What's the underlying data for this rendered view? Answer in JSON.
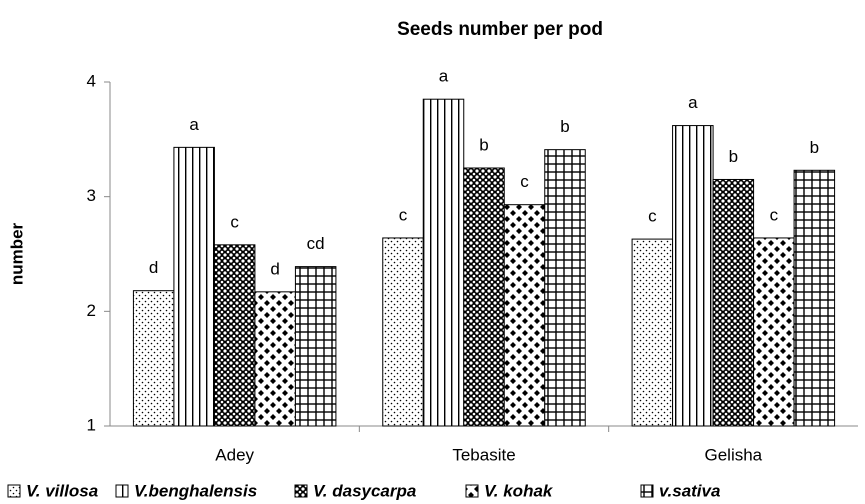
{
  "chart_data": {
    "type": "bar",
    "title": "Seeds number per pod",
    "y_label": "number",
    "categories": [
      "Adey",
      "Tebasite",
      "Gelisha"
    ],
    "series": [
      {
        "name": "V. villosa",
        "color": "#000000",
        "values": [
          2.18,
          2.64,
          2.63
        ],
        "value_labels": [
          "d",
          "c",
          "c"
        ]
      },
      {
        "name": "V.benghalensis",
        "color": "#000000",
        "values": [
          3.43,
          3.85,
          3.62
        ],
        "value_labels": [
          "a",
          "a",
          "a"
        ]
      },
      {
        "name": "V. dasycarpa",
        "color": "#000000",
        "values": [
          2.58,
          3.25,
          3.15
        ],
        "value_labels": [
          "c",
          "b",
          "b"
        ]
      },
      {
        "name": "V. kohak",
        "color": "#000000",
        "values": [
          2.17,
          2.93,
          2.64
        ],
        "value_labels": [
          "d",
          "c",
          "c"
        ]
      },
      {
        "name": "v.sativa",
        "color": "#000000",
        "values": [
          2.39,
          3.41,
          3.23
        ],
        "value_labels": [
          "cd",
          "b",
          "b"
        ]
      }
    ],
    "ylim": [
      1,
      4
    ],
    "yticks": [
      1,
      2,
      3,
      4
    ],
    "grid": false,
    "legend": "bottom"
  }
}
